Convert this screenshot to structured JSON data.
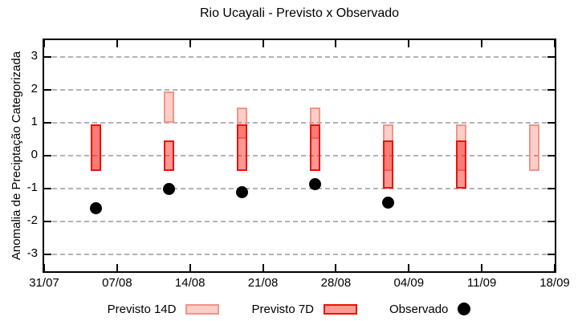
{
  "title": "Rio Ucayali - Previsto x Observado",
  "axes": {
    "y_label": "Anomalia de Preciptação Categorizada",
    "y_tick_values": [
      3,
      2,
      1,
      0,
      -1,
      -2,
      -3
    ],
    "y_tick_labels": [
      "3",
      "2",
      "1",
      "0",
      "-1",
      "-2",
      "-3"
    ],
    "x_tick_labels": [
      "31/07",
      "07/08",
      "14/08",
      "21/08",
      "28/08",
      "04/09",
      "11/09",
      "18/09"
    ],
    "x_tick_day_offsets": [
      0,
      7,
      14,
      21,
      28,
      35,
      42,
      49
    ],
    "ylim": [
      -3.5,
      3.5
    ],
    "x_span_days": 49,
    "grid": "horizontal-dashed-gray"
  },
  "legend": {
    "position": "bottom-center",
    "items": [
      {
        "label": "Previsto 14D",
        "swatch": "box-light-pink"
      },
      {
        "label": "Previsto 7D",
        "swatch": "box-red"
      },
      {
        "label": "Observado",
        "swatch": "black-dot"
      }
    ]
  },
  "colors": {
    "forecast14_fill": "rgba(240,75,55,0.27)",
    "forecast14_border": "#f0948a",
    "forecast7_fill": "rgba(250,25,15,0.45)",
    "forecast7_border": "#ee1009",
    "observed": "#000000",
    "grid": "#9a9a9a",
    "axis": "#000000"
  },
  "chart_data": {
    "type": "range-bar+scatter",
    "title": "Rio Ucayali - Previsto x Observado",
    "xlabel": "",
    "ylabel": "Anomalia de Preciptação Categorizada",
    "ylim": [
      -3.5,
      3.5
    ],
    "x_range": [
      "31/07",
      "18/09"
    ],
    "x_dates": [
      "05/08",
      "12/08",
      "19/08",
      "26/08",
      "02/09",
      "09/09",
      "16/09"
    ],
    "x_day_offsets": [
      5,
      12,
      19,
      26,
      33,
      40,
      47
    ],
    "series": [
      {
        "name": "Previsto 14D",
        "type": "range-bar",
        "style": "light-pink-translucent",
        "ranges": [
          [
            -0.45,
            0.95
          ],
          [
            1.0,
            1.95
          ],
          [
            0.5,
            1.45
          ],
          [
            0.5,
            1.45
          ],
          [
            -0.45,
            0.95
          ],
          [
            -0.45,
            0.95
          ],
          [
            -0.45,
            0.95
          ]
        ]
      },
      {
        "name": "Previsto 7D",
        "type": "range-bar",
        "style": "red-translucent",
        "ranges": [
          [
            -0.45,
            0.95
          ],
          [
            -0.45,
            0.45
          ],
          [
            -0.45,
            0.95
          ],
          [
            -0.45,
            0.95
          ],
          [
            -1.0,
            0.45
          ],
          [
            -1.0,
            0.45
          ],
          null
        ]
      },
      {
        "name": "Observado",
        "type": "scatter",
        "style": "black-filled-circle",
        "points": [
          [
            "05/08",
            -1.6
          ],
          [
            "12/08",
            -1.0
          ],
          [
            "19/08",
            -1.1
          ],
          [
            "26/08",
            -0.87
          ],
          [
            "02/09",
            -1.43
          ]
        ]
      }
    ],
    "legend_entries": [
      "Previsto 14D",
      "Previsto 7D",
      "Observado"
    ]
  }
}
